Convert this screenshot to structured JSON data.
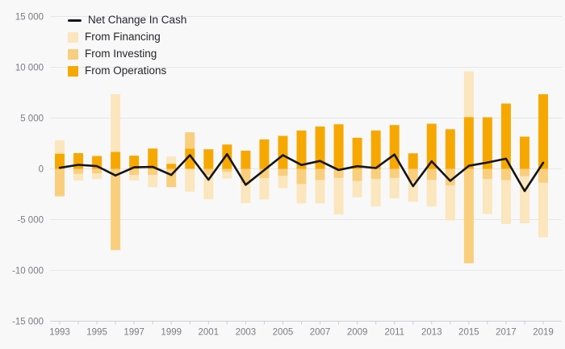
{
  "legend": {
    "items": [
      {
        "label": "Net Change In Cash",
        "swatch": "line"
      },
      {
        "label": "From Financing",
        "swatch": "square"
      },
      {
        "label": "From Investing",
        "swatch": "square"
      },
      {
        "label": "From Operations",
        "swatch": "square"
      }
    ]
  },
  "colors": {
    "background": "#f8f8f9",
    "grid": "#e6e6ea",
    "axis": "#cfcfd6",
    "tick_text": "#7b7b82",
    "legend_text": "#26262a",
    "net_line": "#141414",
    "financing": "#fbe6bd",
    "investing": "#f9cf7d",
    "operations": "#f7a800"
  },
  "chart_data": {
    "type": "bar",
    "subtype": "stacked-bar-with-line",
    "title": "",
    "xlabel": "",
    "ylabel": "",
    "grid": true,
    "legend_position": "top-left",
    "ylim": [
      -15000,
      15000
    ],
    "ytick_interval": 5000,
    "yticks": [
      {
        "value": 15000,
        "label": "15 000"
      },
      {
        "value": 10000,
        "label": "10 000"
      },
      {
        "value": 5000,
        "label": "5 000"
      },
      {
        "value": 0,
        "label": "0"
      },
      {
        "value": -5000,
        "label": "-5 000"
      },
      {
        "value": -10000,
        "label": "-10 000"
      },
      {
        "value": -15000,
        "label": "-15 000"
      }
    ],
    "categories": [
      1993,
      1994,
      1995,
      1996,
      1997,
      1998,
      1999,
      2000,
      2001,
      2002,
      2003,
      2004,
      2005,
      2006,
      2007,
      2008,
      2009,
      2010,
      2011,
      2012,
      2013,
      2014,
      2015,
      2016,
      2017,
      2018,
      2019
    ],
    "xtick_labels": [
      "1993",
      "1995",
      "1997",
      "1999",
      "2001",
      "2003",
      "2005",
      "2007",
      "2009",
      "2011",
      "2013",
      "2015",
      "2017",
      "2019"
    ],
    "stack_order_from_axis": [
      "From Operations",
      "From Investing",
      "From Financing"
    ],
    "series": [
      {
        "name": "From Operations",
        "type": "bar",
        "color_key": "operations",
        "values": [
          1500,
          1550,
          1270,
          1670,
          1300,
          2000,
          500,
          2000,
          1930,
          2400,
          1790,
          2900,
          3250,
          3780,
          4175,
          4390,
          3065,
          3780,
          4310,
          1530,
          4445,
          3900,
          5100,
          5080,
          6430,
          3175,
          7350
        ]
      },
      {
        "name": "From Investing",
        "type": "bar",
        "color_key": "investing",
        "values": [
          -2700,
          -500,
          -450,
          -8000,
          -600,
          -600,
          -1800,
          1600,
          -600,
          -300,
          -1380,
          -930,
          -700,
          -1500,
          -1100,
          -900,
          -1200,
          -1000,
          -900,
          -1250,
          -1100,
          -1650,
          -9300,
          -1000,
          -1110,
          -715,
          -1380
        ]
      },
      {
        "name": "From Financing",
        "type": "bar",
        "color_key": "financing",
        "values": [
          1300,
          -650,
          -550,
          5680,
          -550,
          -1200,
          700,
          -2250,
          -2400,
          -650,
          -1985,
          -2090,
          -1200,
          -1900,
          -2300,
          -3600,
          -1600,
          -2700,
          -2000,
          -1985,
          -2600,
          -3430,
          4500,
          -3450,
          -4320,
          -4640,
          -5370
        ]
      },
      {
        "name": "Net Change In Cash",
        "type": "line",
        "color_key": "net_line",
        "values": [
          100,
          400,
          270,
          -650,
          150,
          200,
          -600,
          1350,
          -1070,
          1450,
          -1575,
          -120,
          1350,
          380,
          775,
          -110,
          265,
          80,
          1410,
          -1705,
          745,
          -1180,
          300,
          630,
          1000,
          -2180,
          600
        ]
      }
    ]
  }
}
